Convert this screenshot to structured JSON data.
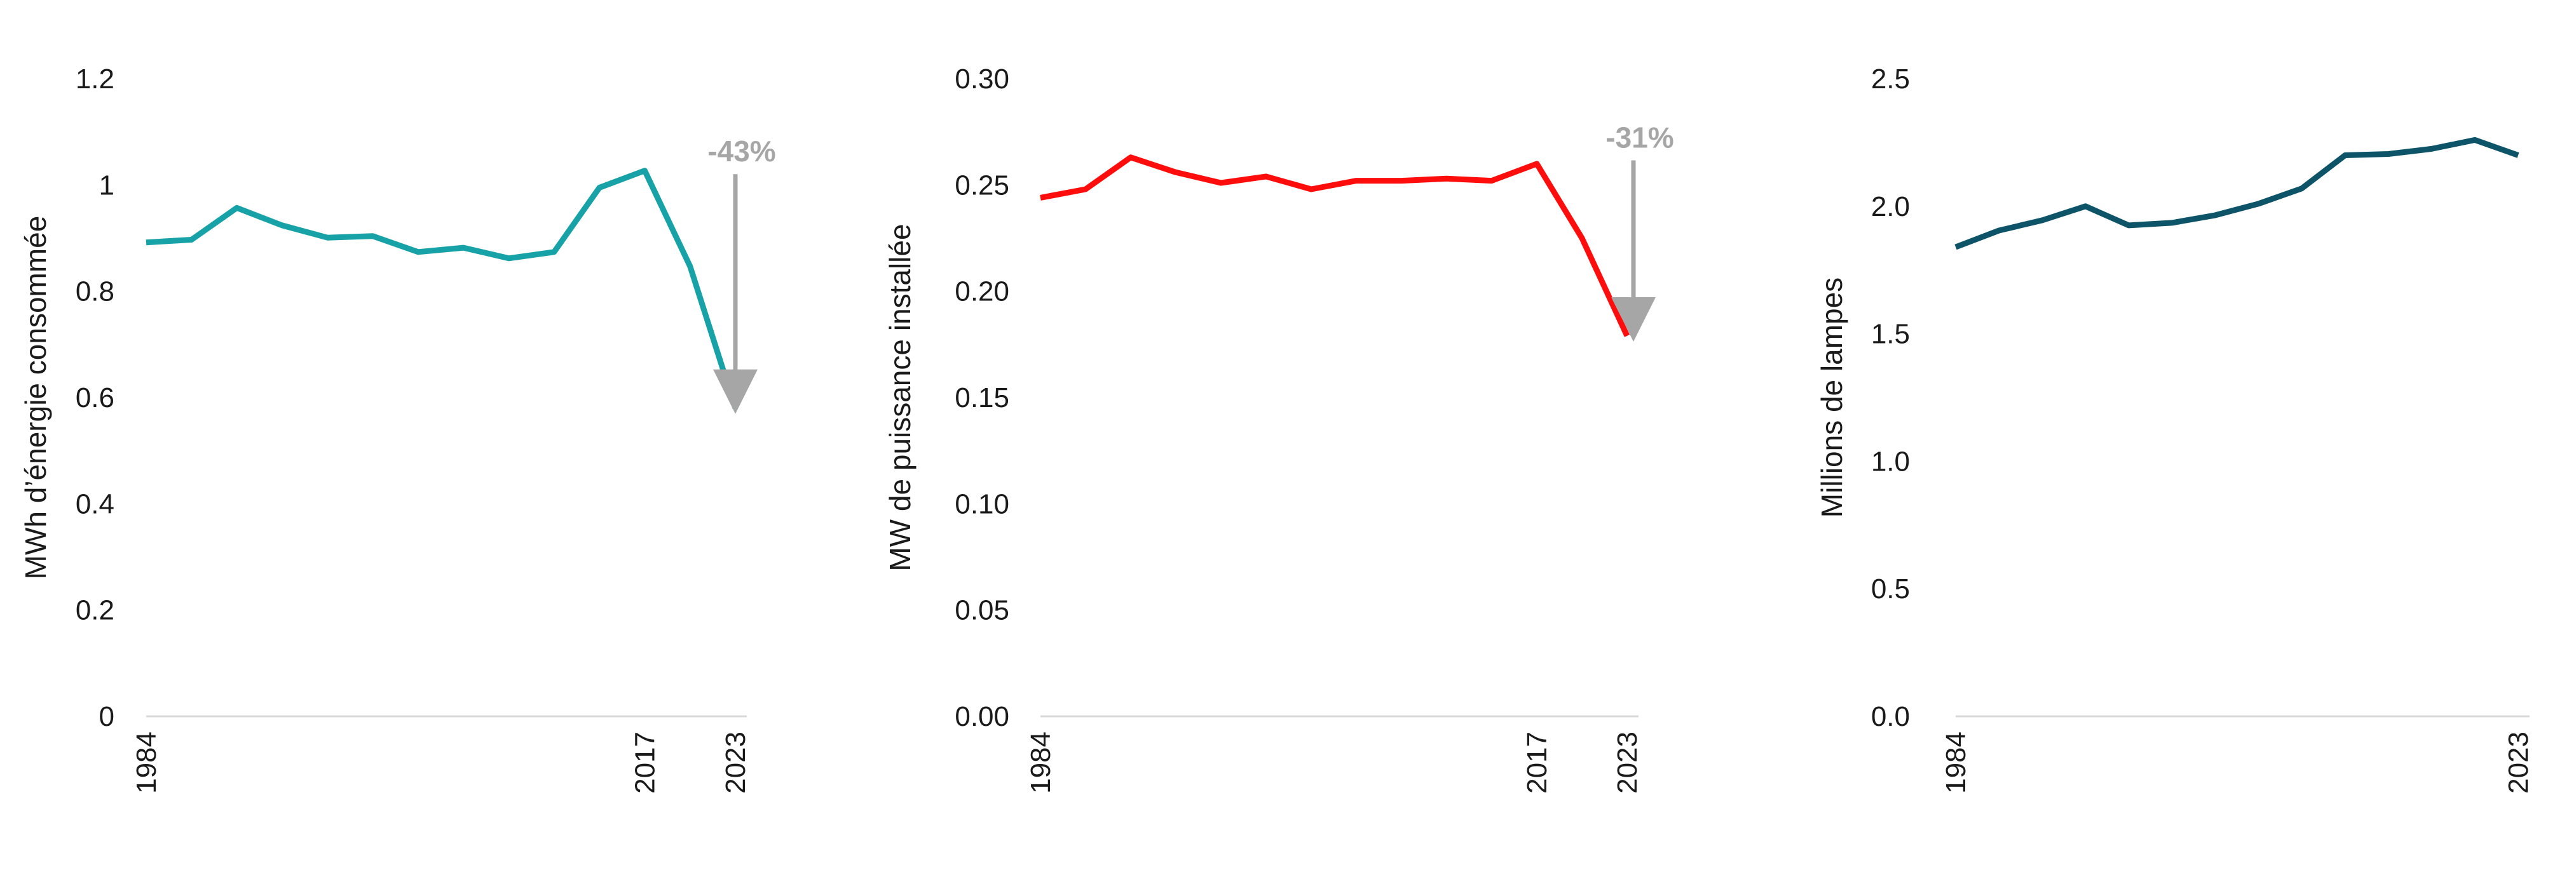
{
  "chart_data": [
    {
      "type": "line",
      "ylabel": "MWh d’énergie consommée",
      "x": [
        1984,
        1987,
        1990,
        1993,
        1996,
        1999,
        2002,
        2005,
        2008,
        2011,
        2014,
        2017,
        2020,
        2023
      ],
      "x_tick_labels": [
        "1984",
        "2017",
        "2023"
      ],
      "values": [
        0.892,
        0.897,
        0.957,
        0.924,
        0.901,
        0.904,
        0.874,
        0.882,
        0.862,
        0.874,
        0.995,
        1.027,
        0.847,
        0.58
      ],
      "ylim": [
        0,
        1.2
      ],
      "y_ticks": [
        "0",
        "0.2",
        "0.4",
        "0.6",
        "0.8",
        "1",
        "1.2"
      ],
      "line_color": "#17a2a7",
      "annotation": {
        "text": "-43%",
        "from": 1.03,
        "to": 0.58,
        "color": "#a6a6a6"
      },
      "grid": false
    },
    {
      "type": "line",
      "ylabel": "MW de puissance installée",
      "x": [
        1984,
        1987,
        1990,
        1993,
        1996,
        1999,
        2002,
        2005,
        2008,
        2011,
        2014,
        2017,
        2020,
        2023
      ],
      "x_tick_labels": [
        "1984",
        "2017",
        "2023"
      ],
      "values": [
        0.244,
        0.248,
        0.263,
        0.256,
        0.251,
        0.254,
        0.248,
        0.252,
        0.252,
        0.253,
        0.252,
        0.26,
        0.225,
        0.179
      ],
      "ylim": [
        0,
        0.3
      ],
      "y_ticks": [
        "0.00",
        "0.05",
        "0.10",
        "0.15",
        "0.20",
        "0.25",
        "0.30"
      ],
      "line_color": "#ff0d0d",
      "annotation": {
        "text": "-31%",
        "from": 0.264,
        "to": 0.179,
        "color": "#a6a6a6"
      },
      "grid": false
    },
    {
      "type": "line",
      "ylabel": "Millions de lampes",
      "x": [
        1984,
        1987,
        1990,
        1993,
        1996,
        1999,
        2002,
        2005,
        2008,
        2011,
        2014,
        2017,
        2020,
        2023
      ],
      "x_tick_labels": [
        "1984",
        "2023"
      ],
      "values": [
        1.84,
        1.905,
        1.945,
        2.0,
        1.925,
        1.935,
        1.965,
        2.01,
        2.07,
        2.2,
        2.205,
        2.225,
        2.26,
        2.2
      ],
      "ylim": [
        0,
        2.5
      ],
      "y_ticks": [
        "0.0",
        "0.5",
        "1.0",
        "1.5",
        "2.0",
        "2.5"
      ],
      "line_color": "#0d5468",
      "grid": false
    }
  ]
}
